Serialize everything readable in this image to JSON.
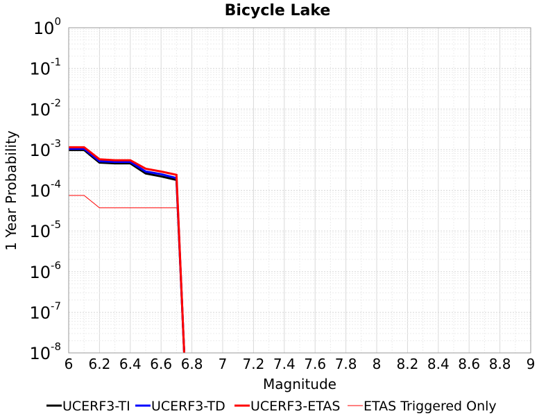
{
  "chart_data": {
    "type": "line",
    "title": "Bicycle Lake",
    "xlabel": "Magnitude",
    "ylabel": "1 Year Probability",
    "xlim": [
      6,
      9
    ],
    "ylim": [
      1e-08,
      1
    ],
    "yscale": "log",
    "grid": true,
    "legend_position": "bottom",
    "x_ticks": [
      "6",
      "6.2",
      "6.4",
      "6.6",
      "6.8",
      "7",
      "7.2",
      "7.4",
      "7.6",
      "7.8",
      "8",
      "8.2",
      "8.4",
      "8.6",
      "8.8",
      "9"
    ],
    "y_ticks": [
      {
        "base": "10",
        "exp": "0"
      },
      {
        "base": "10",
        "exp": "-1"
      },
      {
        "base": "10",
        "exp": "-2"
      },
      {
        "base": "10",
        "exp": "-3"
      },
      {
        "base": "10",
        "exp": "-4"
      },
      {
        "base": "10",
        "exp": "-5"
      },
      {
        "base": "10",
        "exp": "-6"
      },
      {
        "base": "10",
        "exp": "-7"
      },
      {
        "base": "10",
        "exp": "-8"
      }
    ],
    "series": [
      {
        "name": "UCERF3-TI",
        "color": "#000000",
        "width": "thick",
        "x": [
          6.0,
          6.1,
          6.2,
          6.3,
          6.4,
          6.5,
          6.6,
          6.7,
          6.75
        ],
        "y": [
          0.00098,
          0.00098,
          0.00048,
          0.00046,
          0.00046,
          0.00026,
          0.00022,
          0.00018,
          1e-08
        ]
      },
      {
        "name": "UCERF3-TD",
        "color": "#0000ff",
        "width": "thick",
        "x": [
          6.0,
          6.1,
          6.2,
          6.3,
          6.4,
          6.5,
          6.6,
          6.7,
          6.75
        ],
        "y": [
          0.00105,
          0.00105,
          0.00052,
          0.0005,
          0.0005,
          0.00029,
          0.00025,
          0.0002,
          1e-08
        ]
      },
      {
        "name": "UCERF3-ETAS",
        "color": "#ff0000",
        "width": "thick",
        "x": [
          6.0,
          6.1,
          6.2,
          6.3,
          6.4,
          6.5,
          6.6,
          6.7,
          6.75
        ],
        "y": [
          0.00115,
          0.00115,
          0.00058,
          0.00055,
          0.00055,
          0.00034,
          0.00029,
          0.00024,
          1e-08
        ]
      },
      {
        "name": "ETAS Triggered Only",
        "color": "#ff0000",
        "width": "thin",
        "x": [
          6.0,
          6.1,
          6.2,
          6.3,
          6.4,
          6.5,
          6.6,
          6.7
        ],
        "y": [
          7.5e-05,
          7.5e-05,
          3.7e-05,
          3.7e-05,
          3.7e-05,
          3.7e-05,
          3.7e-05,
          3.7e-05
        ]
      }
    ]
  }
}
